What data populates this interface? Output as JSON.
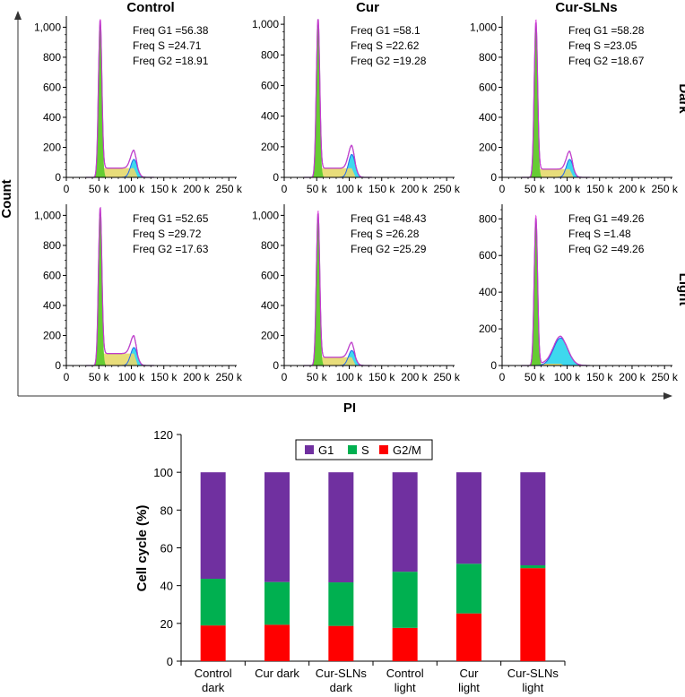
{
  "flow": {
    "axis_label_x": "PI",
    "axis_label_y": "Count",
    "col_titles": [
      "Control",
      "Cur",
      "Cur-SLNs"
    ],
    "row_titles": [
      "Dark",
      "Light"
    ],
    "xticks": [
      "0",
      "50 k",
      "100 k",
      "150 k",
      "200 k",
      "250 k"
    ],
    "xrange": [
      0,
      262144
    ],
    "colors": {
      "g1_fill": "#66cc33",
      "s_fill": "#e6d96b",
      "g2_fill": "#3ed8ee",
      "fit_line": "#7b2fa0",
      "data_line": "#e040e0",
      "g2_line": "#2266ee"
    },
    "panels": [
      {
        "id": "control-dark",
        "ymax": 1050,
        "yticks": [
          0,
          200,
          400,
          600,
          800,
          1000
        ],
        "ytick_labels": [
          "0",
          "200",
          "400",
          "600",
          "800",
          "1,000"
        ],
        "stats": [
          "Freq G1 =56.38",
          "Freq S =24.71",
          "Freq G2 =18.91"
        ],
        "g1_peak": 52000,
        "g1_height": 1010,
        "g2_peak": 104000,
        "g2_height": 120,
        "s_level": 62
      },
      {
        "id": "cur-dark",
        "ymax": 1030,
        "yticks": [
          0,
          200,
          400,
          600,
          800,
          1000
        ],
        "ytick_labels": [
          "0",
          "200",
          "400",
          "600",
          "800",
          "1,000"
        ],
        "stats": [
          "Freq G1 =58.1",
          "Freq S =22.62",
          "Freq G2 =19.28"
        ],
        "g1_peak": 52000,
        "g1_height": 1000,
        "g2_peak": 104000,
        "g2_height": 150,
        "s_level": 60
      },
      {
        "id": "cur-slns-dark",
        "ymax": 1050,
        "yticks": [
          0,
          200,
          400,
          600,
          800,
          1000
        ],
        "ytick_labels": [
          "0",
          "200",
          "400",
          "600",
          "800",
          "1,000"
        ],
        "stats": [
          "Freq G1 =58.28",
          "Freq S =23.05",
          "Freq G2 =18.67"
        ],
        "g1_peak": 52000,
        "g1_height": 1000,
        "g2_peak": 104000,
        "g2_height": 120,
        "s_level": 55
      },
      {
        "id": "control-light",
        "ymax": 1050,
        "yticks": [
          0,
          200,
          400,
          600,
          800,
          1000
        ],
        "ytick_labels": [
          "0",
          "200",
          "400",
          "600",
          "800",
          "1,000"
        ],
        "stats": [
          "Freq G1 =52.65",
          "Freq S =29.72",
          "Freq G2 =17.63"
        ],
        "g1_peak": 52000,
        "g1_height": 1000,
        "g2_peak": 104000,
        "g2_height": 120,
        "s_level": 80
      },
      {
        "id": "cur-light",
        "ymax": 1050,
        "yticks": [
          0,
          200,
          400,
          600,
          800,
          1000
        ],
        "ytick_labels": [
          "0",
          "200",
          "400",
          "600",
          "800",
          "1,000"
        ],
        "stats": [
          "Freq G1 =48.43",
          "Freq S =26.28",
          "Freq G2 =25.29"
        ],
        "g1_peak": 52000,
        "g1_height": 980,
        "g2_peak": 104000,
        "g2_height": 100,
        "s_level": 55
      },
      {
        "id": "cur-slns-light",
        "ymax": 860,
        "yticks": [
          0,
          200,
          400,
          600,
          800
        ],
        "ytick_labels": [
          "0",
          "200",
          "400",
          "600",
          "800"
        ],
        "stats": [
          "Freq G1 =49.26",
          "Freq S =1.48",
          "Freq G2 =49.26"
        ],
        "g1_peak": 52000,
        "g1_height": 800,
        "g2_peak": 90000,
        "g2_height": 150,
        "s_level": 10
      }
    ]
  },
  "chart_data": {
    "type": "bar",
    "stacked": true,
    "title": "",
    "xlabel": "",
    "ylabel": "Cell cycle (%)",
    "ylim": [
      0,
      120
    ],
    "yticks": [
      0,
      20,
      40,
      60,
      80,
      100,
      120
    ],
    "legend_position": "top",
    "categories": [
      "Control\ndark",
      "Cur dark",
      "Cur-SLNs\ndark",
      "Control\nlight",
      "Cur\nlight",
      "Cur-SLNs\nlight"
    ],
    "series": [
      {
        "name": "G2/M",
        "color": "#ff0000",
        "values": [
          18.91,
          19.28,
          18.67,
          17.63,
          25.29,
          49.26
        ]
      },
      {
        "name": "S",
        "color": "#00b050",
        "values": [
          24.71,
          22.62,
          23.05,
          29.72,
          26.28,
          1.48
        ]
      },
      {
        "name": "G1",
        "color": "#7030a0",
        "values": [
          56.38,
          58.1,
          58.28,
          52.65,
          48.43,
          49.26
        ]
      }
    ],
    "legend_order": [
      "G1",
      "S",
      "G2/M"
    ]
  }
}
